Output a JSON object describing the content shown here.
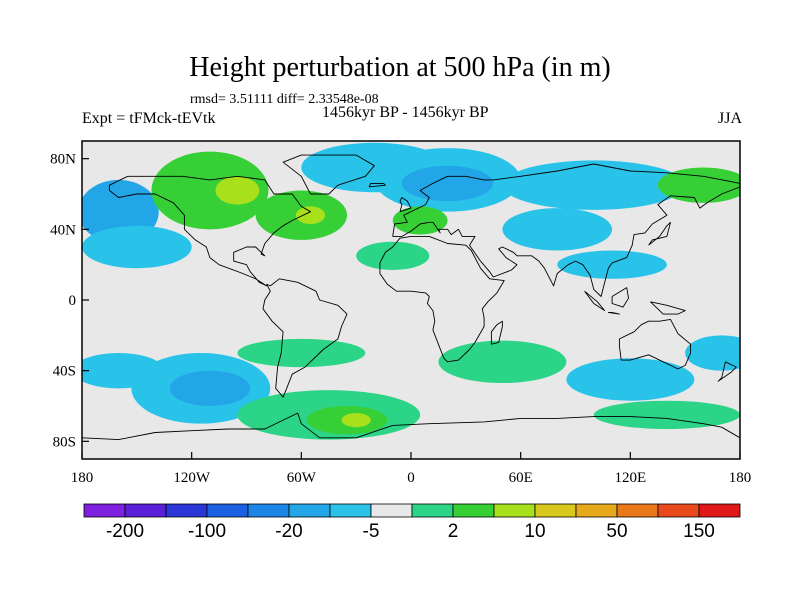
{
  "chart_data": {
    "type": "heatmap",
    "title": "Height perturbation at 500 hPa (in m)",
    "stats_line": "rmsd= 3.51111 diff= 2.33548e-08",
    "left_label": "Expt = tFMck-tEVtk",
    "center_label": "1456kyr BP - 1456kyr BP",
    "season": "JJA",
    "x_range": [
      -180,
      180
    ],
    "y_range": [
      -90,
      90
    ],
    "x_ticks": [
      {
        "value": -180,
        "label": "180"
      },
      {
        "value": -120,
        "label": "120W"
      },
      {
        "value": -60,
        "label": "60W"
      },
      {
        "value": 0,
        "label": "0"
      },
      {
        "value": 60,
        "label": "60E"
      },
      {
        "value": 120,
        "label": "120E"
      },
      {
        "value": 180,
        "label": "180"
      }
    ],
    "y_ticks": [
      {
        "value": 80,
        "label": "80N"
      },
      {
        "value": 40,
        "label": "40N"
      },
      {
        "value": 0,
        "label": "0"
      },
      {
        "value": -40,
        "label": "40S"
      },
      {
        "value": -80,
        "label": "80S"
      }
    ],
    "colorbar": {
      "colors": [
        "#7f1fe0",
        "#5b1fd8",
        "#2a36d6",
        "#1c5fe0",
        "#1b86e6",
        "#23a6e8",
        "#29c3ea",
        "#e8e8e8",
        "#2bd486",
        "#36cf36",
        "#a8e01c",
        "#d8c81c",
        "#e8a81c",
        "#e87818",
        "#e84a1c",
        "#e01818"
      ],
      "labels": [
        {
          "boundary": 1,
          "text": "-200"
        },
        {
          "boundary": 3,
          "text": "-100"
        },
        {
          "boundary": 5,
          "text": "-20"
        },
        {
          "boundary": 7,
          "text": "-5"
        },
        {
          "boundary": 9,
          "text": "2"
        },
        {
          "boundary": 11,
          "text": "10"
        },
        {
          "boundary": 13,
          "text": "50"
        },
        {
          "boundary": 15,
          "text": "150"
        }
      ]
    },
    "regions": [
      {
        "lon": -160,
        "lat": 50,
        "rx": 22,
        "ry": 18,
        "level": 5
      },
      {
        "lon": -150,
        "lat": 30,
        "rx": 30,
        "ry": 12,
        "level": 6
      },
      {
        "lon": -110,
        "lat": 62,
        "rx": 32,
        "ry": 22,
        "level": 9
      },
      {
        "lon": -95,
        "lat": 62,
        "rx": 12,
        "ry": 8,
        "level": 10
      },
      {
        "lon": -60,
        "lat": 48,
        "rx": 25,
        "ry": 14,
        "level": 9
      },
      {
        "lon": -55,
        "lat": 48,
        "rx": 8,
        "ry": 5,
        "level": 10
      },
      {
        "lon": -20,
        "lat": 75,
        "rx": 40,
        "ry": 14,
        "level": 6
      },
      {
        "lon": 20,
        "lat": 68,
        "rx": 40,
        "ry": 18,
        "level": 6
      },
      {
        "lon": 20,
        "lat": 66,
        "rx": 25,
        "ry": 10,
        "level": 5
      },
      {
        "lon": 5,
        "lat": 45,
        "rx": 15,
        "ry": 8,
        "level": 9
      },
      {
        "lon": 100,
        "lat": 65,
        "rx": 50,
        "ry": 14,
        "level": 6
      },
      {
        "lon": 80,
        "lat": 40,
        "rx": 30,
        "ry": 12,
        "level": 6
      },
      {
        "lon": 160,
        "lat": 65,
        "rx": 25,
        "ry": 10,
        "level": 9
      },
      {
        "lon": -10,
        "lat": 25,
        "rx": 20,
        "ry": 8,
        "level": 8
      },
      {
        "lon": 110,
        "lat": 20,
        "rx": 30,
        "ry": 8,
        "level": 6
      },
      {
        "lon": -160,
        "lat": -40,
        "rx": 25,
        "ry": 10,
        "level": 6
      },
      {
        "lon": -115,
        "lat": -50,
        "rx": 38,
        "ry": 20,
        "level": 6
      },
      {
        "lon": -110,
        "lat": -50,
        "rx": 22,
        "ry": 10,
        "level": 5
      },
      {
        "lon": -60,
        "lat": -30,
        "rx": 35,
        "ry": 8,
        "level": 8
      },
      {
        "lon": -45,
        "lat": -65,
        "rx": 50,
        "ry": 14,
        "level": 8
      },
      {
        "lon": -35,
        "lat": -68,
        "rx": 22,
        "ry": 8,
        "level": 9
      },
      {
        "lon": -30,
        "lat": -68,
        "rx": 8,
        "ry": 4,
        "level": 10
      },
      {
        "lon": 50,
        "lat": -35,
        "rx": 35,
        "ry": 12,
        "level": 8
      },
      {
        "lon": 120,
        "lat": -45,
        "rx": 35,
        "ry": 12,
        "level": 6
      },
      {
        "lon": 140,
        "lat": -65,
        "rx": 40,
        "ry": 8,
        "level": 8
      },
      {
        "lon": 170,
        "lat": -30,
        "rx": 20,
        "ry": 10,
        "level": 6
      }
    ],
    "coastlines": [
      [
        [
          -165,
          65
        ],
        [
          -155,
          70
        ],
        [
          -140,
          70
        ],
        [
          -125,
          70
        ],
        [
          -110,
          68
        ],
        [
          -95,
          70
        ],
        [
          -80,
          68
        ],
        [
          -75,
          60
        ],
        [
          -65,
          60
        ],
        [
          -60,
          53
        ],
        [
          -55,
          50
        ],
        [
          -65,
          45
        ],
        [
          -70,
          42
        ],
        [
          -75,
          38
        ],
        [
          -80,
          32
        ],
        [
          -82,
          26
        ],
        [
          -80,
          25
        ],
        [
          -85,
          30
        ],
        [
          -90,
          30
        ],
        [
          -97,
          27
        ],
        [
          -97,
          22
        ],
        [
          -90,
          20
        ],
        [
          -88,
          16
        ],
        [
          -83,
          10
        ],
        [
          -79,
          8
        ],
        [
          -85,
          12
        ],
        [
          -92,
          15
        ],
        [
          -105,
          20
        ],
        [
          -110,
          24
        ],
        [
          -112,
          30
        ],
        [
          -118,
          34
        ],
        [
          -124,
          40
        ],
        [
          -124,
          48
        ],
        [
          -130,
          55
        ],
        [
          -140,
          60
        ],
        [
          -150,
          60
        ],
        [
          -160,
          58
        ],
        [
          -165,
          62
        ],
        [
          -165,
          65
        ]
      ],
      [
        [
          -55,
          60
        ],
        [
          -45,
          60
        ],
        [
          -40,
          65
        ],
        [
          -25,
          70
        ],
        [
          -20,
          76
        ],
        [
          -30,
          82
        ],
        [
          -60,
          82
        ],
        [
          -70,
          78
        ],
        [
          -60,
          70
        ],
        [
          -55,
          60
        ]
      ],
      [
        [
          -79,
          9
        ],
        [
          -77,
          8
        ],
        [
          -72,
          12
        ],
        [
          -62,
          10
        ],
        [
          -52,
          5
        ],
        [
          -50,
          0
        ],
        [
          -40,
          -3
        ],
        [
          -35,
          -8
        ],
        [
          -38,
          -15
        ],
        [
          -40,
          -22
        ],
        [
          -48,
          -28
        ],
        [
          -55,
          -35
        ],
        [
          -58,
          -38
        ],
        [
          -65,
          -42
        ],
        [
          -68,
          -50
        ],
        [
          -70,
          -55
        ],
        [
          -74,
          -50
        ],
        [
          -73,
          -38
        ],
        [
          -71,
          -30
        ],
        [
          -70,
          -18
        ],
        [
          -76,
          -12
        ],
        [
          -81,
          -5
        ],
        [
          -80,
          0
        ],
        [
          -77,
          5
        ],
        [
          -79,
          9
        ]
      ],
      [
        [
          -10,
          36
        ],
        [
          -9,
          43
        ],
        [
          -2,
          44
        ],
        [
          -4,
          48
        ],
        [
          2,
          51
        ],
        [
          8,
          54
        ],
        [
          10,
          58
        ],
        [
          5,
          62
        ],
        [
          12,
          66
        ],
        [
          20,
          70
        ],
        [
          30,
          70
        ],
        [
          40,
          68
        ],
        [
          45,
          68
        ],
        [
          60,
          70
        ],
        [
          80,
          73
        ],
        [
          100,
          77
        ],
        [
          120,
          73
        ],
        [
          140,
          72
        ],
        [
          160,
          70
        ],
        [
          175,
          67
        ],
        [
          180,
          66
        ]
      ],
      [
        [
          180,
          64
        ],
        [
          170,
          60
        ],
        [
          162,
          55
        ],
        [
          158,
          52
        ],
        [
          155,
          58
        ],
        [
          142,
          59
        ],
        [
          135,
          54
        ],
        [
          140,
          48
        ],
        [
          132,
          43
        ],
        [
          128,
          38
        ],
        [
          122,
          37
        ],
        [
          121,
          31
        ],
        [
          118,
          24
        ],
        [
          110,
          21
        ],
        [
          108,
          18
        ],
        [
          106,
          10
        ],
        [
          104,
          2
        ],
        [
          100,
          6
        ],
        [
          98,
          14
        ],
        [
          94,
          20
        ],
        [
          90,
          22
        ],
        [
          86,
          20
        ],
        [
          80,
          15
        ],
        [
          78,
          8
        ],
        [
          73,
          18
        ],
        [
          70,
          22
        ],
        [
          66,
          25
        ],
        [
          58,
          25
        ],
        [
          56,
          27
        ],
        [
          50,
          30
        ],
        [
          48,
          29
        ],
        [
          52,
          24
        ],
        [
          58,
          20
        ],
        [
          55,
          17
        ],
        [
          45,
          13
        ],
        [
          43,
          16
        ],
        [
          38,
          22
        ],
        [
          34,
          28
        ],
        [
          32,
          31
        ],
        [
          35,
          36
        ],
        [
          28,
          36
        ],
        [
          26,
          40
        ],
        [
          22,
          37
        ],
        [
          20,
          40
        ],
        [
          15,
          40
        ],
        [
          16,
          38
        ],
        [
          12,
          44
        ],
        [
          10,
          44
        ],
        [
          5,
          43
        ],
        [
          0,
          39
        ],
        [
          -5,
          36
        ],
        [
          -10,
          36
        ]
      ],
      [
        [
          -17,
          21
        ],
        [
          -17,
          15
        ],
        [
          -13,
          9
        ],
        [
          -8,
          5
        ],
        [
          0,
          5
        ],
        [
          8,
          4
        ],
        [
          10,
          2
        ],
        [
          9,
          -2
        ],
        [
          12,
          -6
        ],
        [
          13,
          -12
        ],
        [
          12,
          -17
        ],
        [
          15,
          -25
        ],
        [
          18,
          -33
        ],
        [
          20,
          -35
        ],
        [
          26,
          -34
        ],
        [
          32,
          -28
        ],
        [
          35,
          -24
        ],
        [
          40,
          -15
        ],
        [
          40,
          -10
        ],
        [
          39,
          -5
        ],
        [
          42,
          -1
        ],
        [
          47,
          4
        ],
        [
          51,
          11
        ],
        [
          43,
          12
        ],
        [
          38,
          18
        ],
        [
          33,
          28
        ],
        [
          30,
          31
        ],
        [
          20,
          32
        ],
        [
          10,
          36
        ],
        [
          0,
          36
        ],
        [
          -6,
          35
        ],
        [
          -10,
          30
        ],
        [
          -14,
          27
        ],
        [
          -17,
          21
        ]
      ],
      [
        [
          44,
          -25
        ],
        [
          48,
          -24
        ],
        [
          50,
          -15
        ],
        [
          50,
          -12
        ],
        [
          47,
          -14
        ],
        [
          44,
          -18
        ],
        [
          44,
          -25
        ]
      ],
      [
        [
          114,
          -22
        ],
        [
          114,
          -26
        ],
        [
          115,
          -34
        ],
        [
          120,
          -34
        ],
        [
          130,
          -31
        ],
        [
          138,
          -35
        ],
        [
          146,
          -39
        ],
        [
          150,
          -37
        ],
        [
          153,
          -30
        ],
        [
          153,
          -25
        ],
        [
          146,
          -19
        ],
        [
          142,
          -11
        ],
        [
          136,
          -12
        ],
        [
          130,
          -12
        ],
        [
          126,
          -14
        ],
        [
          122,
          -18
        ],
        [
          114,
          -22
        ]
      ],
      [
        [
          172,
          -35
        ],
        [
          178,
          -38
        ],
        [
          175,
          -41
        ],
        [
          168,
          -46
        ],
        [
          170,
          -44
        ],
        [
          172,
          -35
        ]
      ],
      [
        [
          -180,
          -78
        ],
        [
          -160,
          -79
        ],
        [
          -140,
          -75
        ],
        [
          -120,
          -74
        ],
        [
          -100,
          -73
        ],
        [
          -80,
          -73
        ],
        [
          -70,
          -68
        ],
        [
          -62,
          -64
        ],
        [
          -60,
          -70
        ],
        [
          -50,
          -78
        ],
        [
          -30,
          -78
        ],
        [
          -10,
          -71
        ],
        [
          10,
          -70
        ],
        [
          40,
          -69
        ],
        [
          60,
          -67
        ],
        [
          80,
          -67
        ],
        [
          100,
          -66
        ],
        [
          120,
          -66
        ],
        [
          140,
          -67
        ],
        [
          160,
          -70
        ],
        [
          170,
          -72
        ],
        [
          180,
          -78
        ]
      ],
      [
        [
          95,
          5
        ],
        [
          102,
          -1
        ],
        [
          106,
          -6
        ],
        [
          100,
          -2
        ],
        [
          95,
          5
        ]
      ],
      [
        [
          110,
          -7
        ],
        [
          114,
          -8
        ],
        [
          108,
          -7
        ],
        [
          110,
          -7
        ]
      ],
      [
        [
          110,
          2
        ],
        [
          118,
          7
        ],
        [
          119,
          1
        ],
        [
          116,
          -4
        ],
        [
          110,
          -2
        ],
        [
          110,
          2
        ]
      ],
      [
        [
          131,
          -1
        ],
        [
          140,
          -3
        ],
        [
          150,
          -6
        ],
        [
          146,
          -8
        ],
        [
          138,
          -8
        ],
        [
          131,
          -1
        ]
      ],
      [
        [
          130,
          31
        ],
        [
          132,
          34
        ],
        [
          136,
          35
        ],
        [
          140,
          36
        ],
        [
          141,
          40
        ],
        [
          142,
          44
        ],
        [
          140,
          42
        ],
        [
          136,
          36
        ],
        [
          130,
          31
        ]
      ],
      [
        [
          -6,
          50
        ],
        [
          -3,
          51
        ],
        [
          0,
          52
        ],
        [
          -2,
          56
        ],
        [
          -5,
          58
        ],
        [
          -6,
          56
        ],
        [
          -5,
          54
        ],
        [
          -6,
          50
        ]
      ],
      [
        [
          -23,
          64
        ],
        [
          -14,
          65
        ],
        [
          -15,
          66
        ],
        [
          -22,
          66
        ],
        [
          -23,
          64
        ]
      ]
    ]
  }
}
